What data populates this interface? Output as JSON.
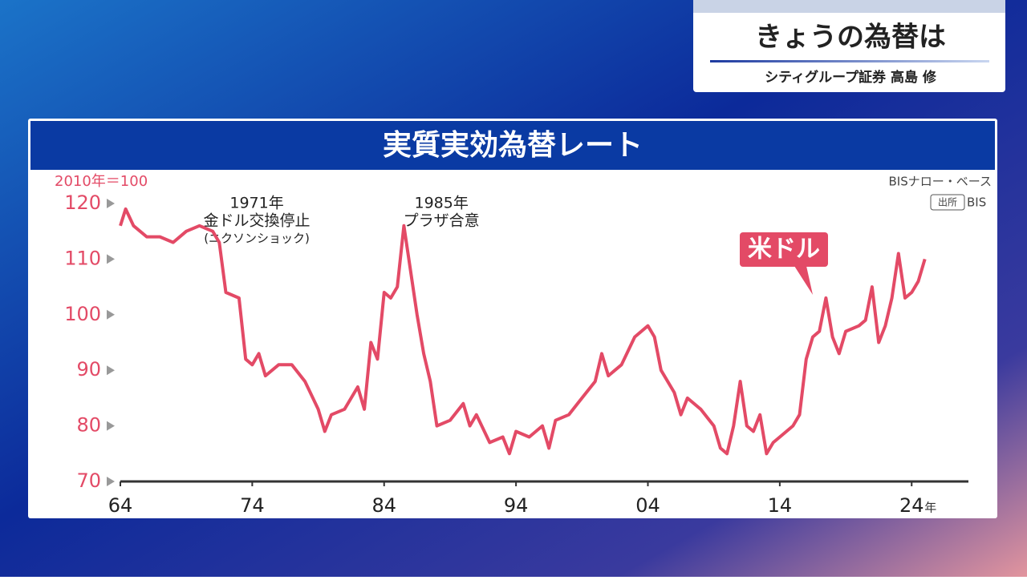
{
  "header": {
    "title": "きょうの為替は",
    "subtitle": "シティグループ証券 高島 修"
  },
  "chart_data": {
    "type": "line",
    "title": "実質実効為替レート",
    "y_label": "2010年＝100",
    "note": "BISナロー・ベース",
    "source_label": "出所",
    "source": "BIS",
    "x_unit": "年",
    "annotations": [
      {
        "x": 1971,
        "lines": [
          "1971年",
          "金ドル交換停止",
          "(ニクソンショック)"
        ]
      },
      {
        "x": 1985,
        "lines": [
          "1985年",
          "プラザ合意"
        ]
      }
    ],
    "x": [
      1964,
      1964.4,
      1965,
      1966,
      1967,
      1968,
      1969,
      1970,
      1971,
      1971.5,
      1972,
      1973,
      1973.5,
      1974,
      1974.5,
      1975,
      1976,
      1977,
      1978,
      1979,
      1979.5,
      1980,
      1981,
      1982,
      1982.5,
      1983,
      1983.5,
      1984,
      1984.5,
      1985,
      1985.5,
      1986,
      1986.5,
      1987,
      1987.5,
      1988,
      1989,
      1990,
      1990.5,
      1991,
      1992,
      1993,
      1993.5,
      1994,
      1995,
      1996,
      1996.5,
      1997,
      1998,
      1999,
      2000,
      2000.5,
      2001,
      2002,
      2003,
      2004,
      2004.5,
      2005,
      2006,
      2006.5,
      2007,
      2008,
      2009,
      2009.5,
      2010,
      2010.5,
      2011,
      2011.5,
      2012,
      2012.5,
      2013,
      2013.5,
      2014,
      2015,
      2015.5,
      2016,
      2016.5,
      2017,
      2017.5,
      2018,
      2018.5,
      2019,
      2020,
      2020.5,
      2021,
      2021.5,
      2022,
      2022.5,
      2023,
      2023.5,
      2024,
      2024.5,
      2025
    ],
    "series": [
      {
        "name": "米ドル",
        "color": "#e34a66",
        "values": [
          116,
          119,
          116,
          114,
          114,
          113,
          115,
          116,
          115,
          113,
          104,
          103,
          92,
          91,
          93,
          89,
          91,
          91,
          88,
          83,
          79,
          82,
          83,
          87,
          83,
          95,
          92,
          104,
          103,
          105,
          116,
          108,
          100,
          93,
          88,
          80,
          81,
          84,
          80,
          82,
          77,
          78,
          75,
          79,
          78,
          80,
          76,
          81,
          82,
          85,
          88,
          93,
          89,
          91,
          96,
          98,
          96,
          90,
          86,
          82,
          85,
          83,
          80,
          76,
          75,
          80,
          88,
          80,
          79,
          82,
          75,
          77,
          78,
          80,
          82,
          92,
          96,
          97,
          103,
          96,
          93,
          97,
          98,
          99,
          105,
          95,
          98,
          103,
          111,
          103,
          104,
          106,
          110
        ]
      }
    ],
    "xlim": [
      1964,
      2028
    ],
    "xticks": [
      {
        "value": 1964,
        "label": "64"
      },
      {
        "value": 1974,
        "label": "74"
      },
      {
        "value": 1984,
        "label": "84"
      },
      {
        "value": 1994,
        "label": "94"
      },
      {
        "value": 2004,
        "label": "04"
      },
      {
        "value": 2014,
        "label": "14"
      },
      {
        "value": 2024,
        "label": "24"
      }
    ],
    "ylim": [
      70,
      120
    ],
    "yticks": [
      70,
      80,
      90,
      100,
      110,
      120
    ],
    "grid": false
  }
}
